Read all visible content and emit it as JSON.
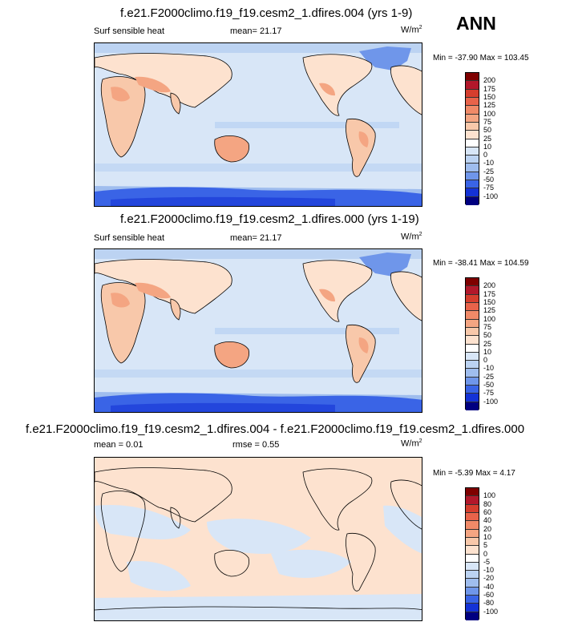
{
  "season": "ANN",
  "panels": [
    {
      "title": "f.e21.F2000climo.f19_f19.cesm2_1.dfires.004 (yrs 1-9)",
      "left_label": "Surf sensible heat",
      "center_label": "mean=  21.17",
      "units": "W/m",
      "units_sup": "2",
      "min_max": "Min = -37.90 Max = 103.45",
      "colorbar": {
        "labels": [
          "200",
          "175",
          "150",
          "125",
          "100",
          "75",
          "50",
          "25",
          "10",
          "0",
          "-10",
          "-25",
          "-50",
          "-75",
          "-100"
        ],
        "colors": [
          "#7f0000",
          "#b2182b",
          "#d53e2e",
          "#e8634a",
          "#f08a68",
          "#f4a582",
          "#f8c8aa",
          "#fde2cf",
          "#ffffff",
          "#d8e6f7",
          "#bcd3f2",
          "#9fbdee",
          "#6f96ea",
          "#3a64e6",
          "#1432d6",
          "#000080"
        ]
      }
    },
    {
      "title": "f.e21.F2000climo.f19_f19.cesm2_1.dfires.000 (yrs 1-19)",
      "left_label": "Surf sensible heat",
      "center_label": "mean=  21.17",
      "units": "W/m",
      "units_sup": "2",
      "min_max": "Min = -38.41 Max = 104.59",
      "colorbar": {
        "labels": [
          "200",
          "175",
          "150",
          "125",
          "100",
          "75",
          "50",
          "25",
          "10",
          "0",
          "-10",
          "-25",
          "-50",
          "-75",
          "-100"
        ],
        "colors": [
          "#7f0000",
          "#b2182b",
          "#d53e2e",
          "#e8634a",
          "#f08a68",
          "#f4a582",
          "#f8c8aa",
          "#fde2cf",
          "#ffffff",
          "#d8e6f7",
          "#bcd3f2",
          "#9fbdee",
          "#6f96ea",
          "#3a64e6",
          "#1432d6",
          "#000080"
        ]
      }
    },
    {
      "title": "f.e21.F2000climo.f19_f19.cesm2_1.dfires.004 - f.e21.F2000climo.f19_f19.cesm2_1.dfires.000",
      "left_label": "mean =  0.01",
      "center_label": "rmse =  0.55",
      "units": "W/m",
      "units_sup": "2",
      "min_max": "Min = -5.39 Max =  4.17",
      "colorbar": {
        "labels": [
          "100",
          "80",
          "60",
          "40",
          "20",
          "10",
          "5",
          "0",
          "-5",
          "-10",
          "-20",
          "-40",
          "-60",
          "-80",
          "-100"
        ],
        "colors": [
          "#7f0000",
          "#b2182b",
          "#d53e2e",
          "#e8634a",
          "#f08a68",
          "#f4a582",
          "#f8c8aa",
          "#fde2cf",
          "#ffffff",
          "#d8e6f7",
          "#bcd3f2",
          "#9fbdee",
          "#6f96ea",
          "#3a64e6",
          "#1432d6",
          "#000080"
        ]
      }
    }
  ]
}
